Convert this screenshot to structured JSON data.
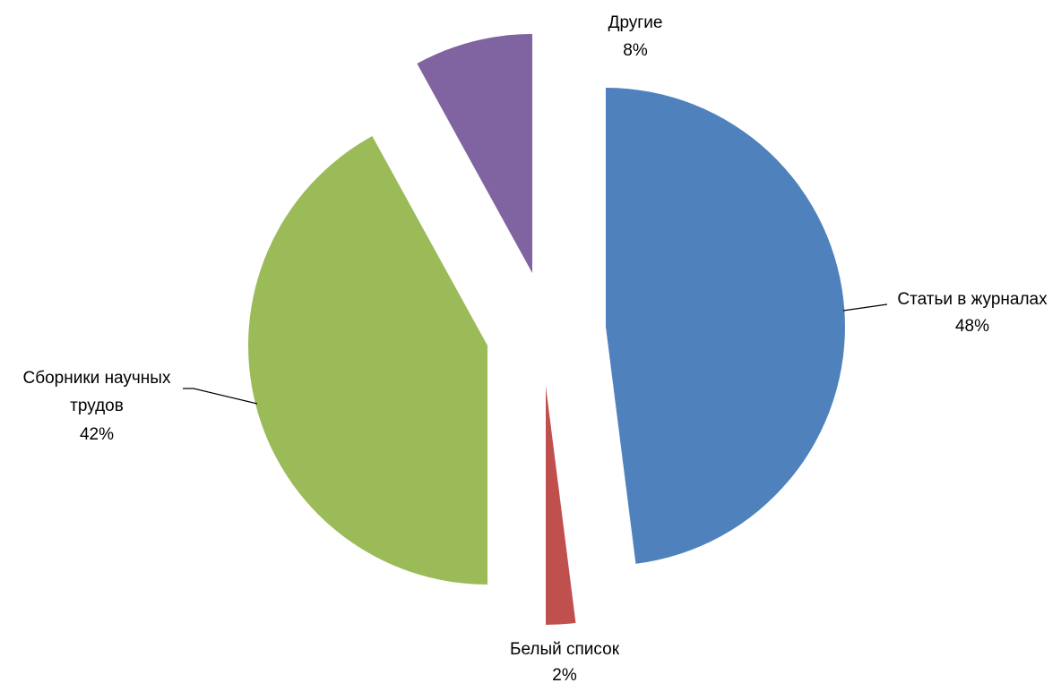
{
  "chart_data": {
    "type": "pie",
    "title": "",
    "exploded": true,
    "slices": [
      {
        "label": "Статьи в журналах",
        "value": 48,
        "pct_label": "48%",
        "color": "#4F81BD"
      },
      {
        "label": "Белый список",
        "value": 2,
        "pct_label": "2%",
        "color": "#C0504D"
      },
      {
        "label": "Сборники научных трудов",
        "value": 42,
        "pct_label": "42%",
        "color": "#9BBB59"
      },
      {
        "label": "Другие",
        "value": 8,
        "pct_label": "8%",
        "color": "#8064A2"
      }
    ]
  }
}
